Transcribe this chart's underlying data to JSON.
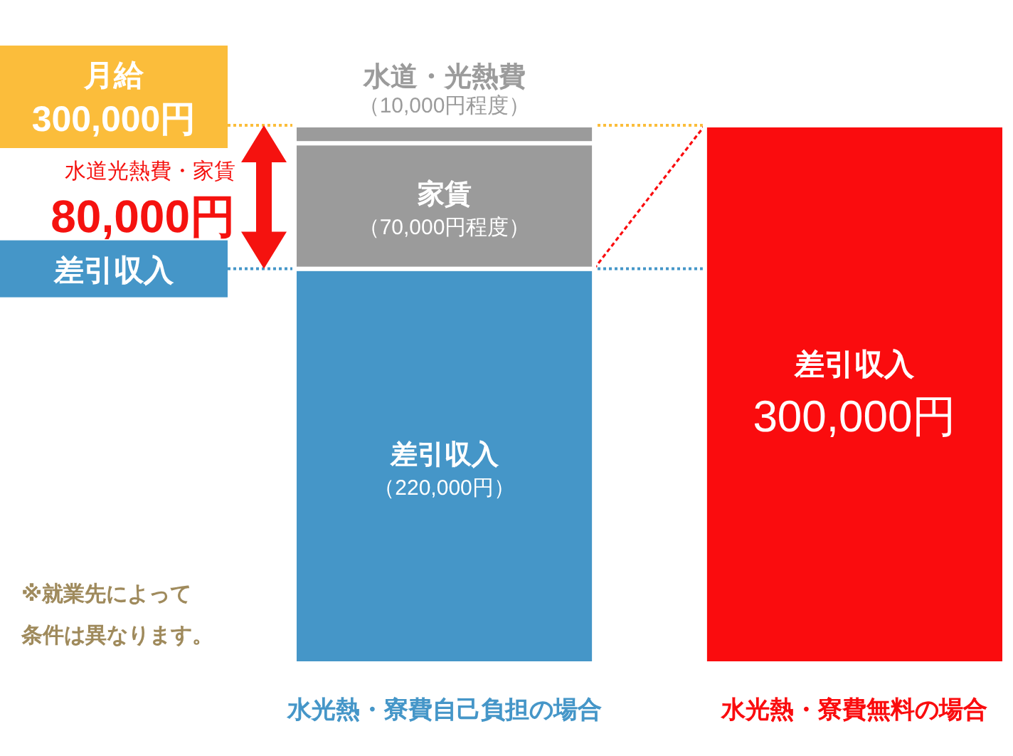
{
  "chart_data": {
    "type": "bar",
    "stacked": true,
    "categories": [
      "水光熱・寮費自己負担の場合",
      "水光熱・寮費無料の場合"
    ],
    "series": [
      {
        "name": "差引収入",
        "colors": [
          "#4596c8",
          "#fa0c0e"
        ],
        "values": [
          220000,
          300000
        ],
        "value_labels": [
          "（220,000円）",
          "300,000円"
        ]
      },
      {
        "name": "家賃",
        "color": "#9b9b9b",
        "values": [
          70000,
          null
        ],
        "value_labels": [
          "（70,000円程度）",
          null
        ]
      },
      {
        "name": "水道・光熱費",
        "color": "#9b9b9b",
        "values": [
          10000,
          null
        ],
        "value_labels": [
          "（10,000円程度）",
          null
        ]
      }
    ],
    "ref_lines": [
      {
        "axis": "y",
        "value": 300000,
        "label": "月給\n300,000円",
        "color": "#fbbd3b",
        "line_style": "dotted"
      },
      {
        "axis": "y",
        "value": 220000,
        "label": "差引収入",
        "color": "#4596c8",
        "line_style": "dotted"
      }
    ],
    "annotations": [
      "水道光熱費・家賃\n80,000円",
      "※就業先によって条件は異なります。"
    ]
  }
}
